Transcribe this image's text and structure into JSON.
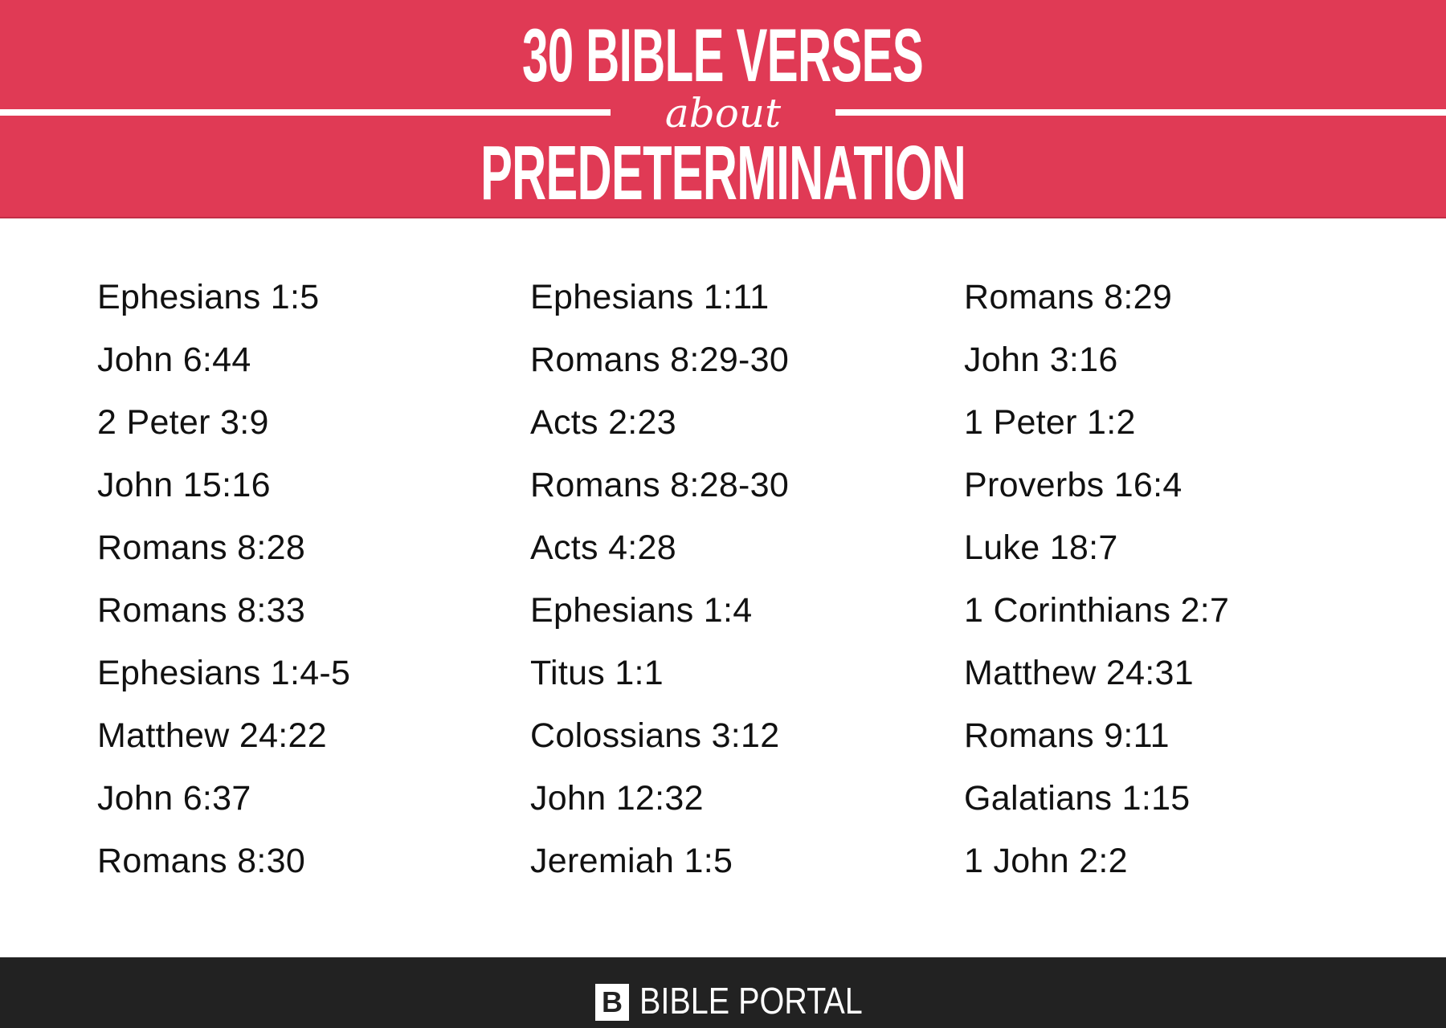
{
  "colors": {
    "accent": "#e03a55",
    "footer": "#222222"
  },
  "header": {
    "line1": "30 BIBLE VERSES",
    "line2": "about",
    "line3": "PREDETERMINATION"
  },
  "columns": [
    [
      "Ephesians 1:5",
      "John 6:44",
      "2 Peter 3:9",
      "John 15:16",
      "Romans 8:28",
      "Romans 8:33",
      "Ephesians 1:4-5",
      "Matthew 24:22",
      "John 6:37",
      "Romans 8:30"
    ],
    [
      "Ephesians 1:11",
      "Romans 8:29-30",
      "Acts 2:23",
      "Romans 8:28-30",
      "Acts 4:28",
      "Ephesians 1:4",
      "Titus 1:1",
      "Colossians 3:12",
      "John 12:32",
      "Jeremiah 1:5"
    ],
    [
      "Romans 8:29",
      "John 3:16",
      "1 Peter 1:2",
      "Proverbs 16:4",
      "Luke 18:7",
      "1 Corinthians 2:7",
      "Matthew 24:31",
      "Romans 9:11",
      "Galatians 1:15",
      "1 John 2:2"
    ]
  ],
  "footer": {
    "logo_letter": "B",
    "brand": "BIBLE PORTAL",
    "logo_icon": "bible-portal-logo-icon"
  }
}
